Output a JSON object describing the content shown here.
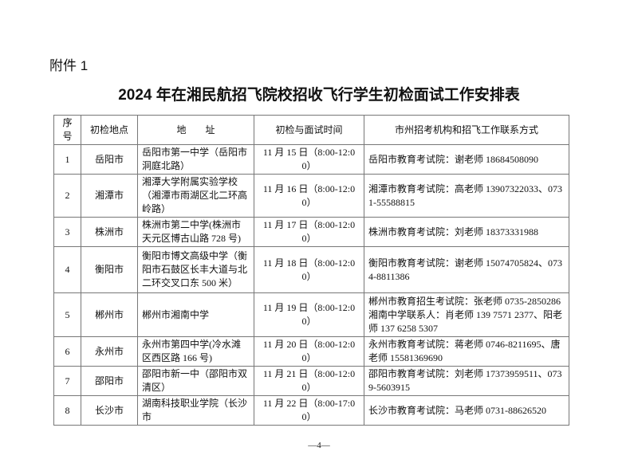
{
  "attachment_label": "附件 1",
  "title": "2024 年在湘民航招飞院校招收飞行学生初检面试工作安排表",
  "table": {
    "headers": [
      "序号",
      "初检地点",
      "地　　址",
      "初检与面试时间",
      "市州招考机构和招飞工作联系方式"
    ],
    "rows": [
      {
        "no": "1",
        "city": "岳阳市",
        "address": "岳阳市第一中学（岳阳市洞庭北路）",
        "time": "11 月 15 日（8:00-12:00）",
        "contact": "岳阳市教育考试院：谢老师 18684508090"
      },
      {
        "no": "2",
        "city": "湘潭市",
        "address": "湘潭大学附属实验学校（湘潭市雨湖区北二环高岭路）",
        "time": "11 月 16 日（8:00-12:00）",
        "contact": "湘潭市教育考试院：高老师 13907322033、0731-55588815"
      },
      {
        "no": "3",
        "city": "株洲市",
        "address": "株洲市第二中学(株洲市天元区博古山路 728 号)",
        "time": "11 月 17 日（8:00-12:00）",
        "contact": "株洲市教育考试院：刘老师 18373331988"
      },
      {
        "no": "4",
        "city": "衡阳市",
        "address": "衡阳市博文高级中学（衡阳市石鼓区长丰大道与北二环交叉口东 500 米）",
        "time": "11 月 18 日（8:00-12:00）",
        "contact": "衡阳市教育考试院：谢老师 15074705824、0734-8811386"
      },
      {
        "no": "5",
        "city": "郴州市",
        "address": "郴州市湘南中学",
        "time": "11 月 19 日（8:00-12:00）",
        "contact": "郴州市教育招生考试院：张老师 0735-2850286 湘南中学联系人：肖老师 139 7571 2377、阳老师 137 6258 5307"
      },
      {
        "no": "6",
        "city": "永州市",
        "address": "永州市第四中学(冷水滩区西区路 166 号)",
        "time": "11 月 20 日（8:00-12:00）",
        "contact": "永州市教育考试院：蒋老师 0746-8211695、唐老师 15581369690"
      },
      {
        "no": "7",
        "city": "邵阳市",
        "address": "邵阳市新一中（邵阳市双清区）",
        "time": "11 月 21 日（8:00-12:00）",
        "contact": "邵阳市教育考试院：刘老师 17373959511、0739-5603915"
      },
      {
        "no": "8",
        "city": "长沙市",
        "address": "湖南科技职业学院（长沙市",
        "time": "11 月 22 日（8:00-17:00）",
        "contact": "长沙市教育考试院：马老师 0731-88626520"
      }
    ]
  },
  "page_number": "—4—"
}
